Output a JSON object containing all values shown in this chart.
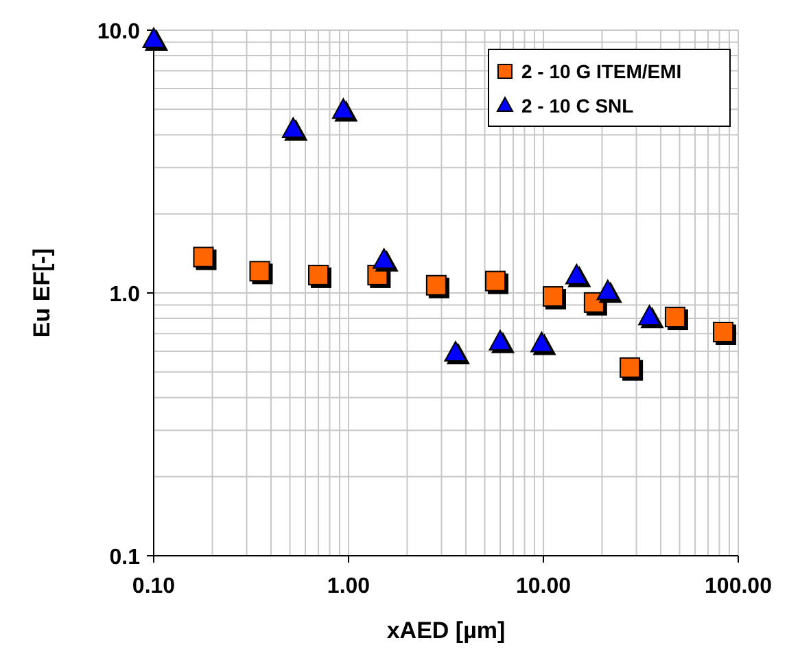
{
  "chart_data": {
    "type": "scatter",
    "xlabel": "xAED [µm]",
    "ylabel": "Eu EF[-]",
    "log": "xy",
    "grid": true,
    "legend": "top right",
    "xlim": [
      0.1,
      100
    ],
    "xticks": [
      {
        "value": 0.1,
        "label": "0.10"
      },
      {
        "value": 1,
        "label": "1.00"
      },
      {
        "value": 10,
        "label": "10.00"
      },
      {
        "value": 100,
        "label": "100.00"
      }
    ],
    "ylim": [
      0.1,
      10
    ],
    "yticks": [
      0.1,
      {
        "value": 1,
        "label": "1.0"
      },
      {
        "value": 10,
        "label": "10.0"
      }
    ],
    "series": [
      {
        "name": "2 - 10 G ITEM/EMI",
        "color": "#ff6600",
        "marker": "square",
        "x": [
          0.18,
          0.35,
          0.7,
          1.41,
          2.82,
          5.67,
          11.2,
          18.2,
          27.8,
          47.4,
          83.7
        ],
        "values": [
          1.37,
          1.21,
          1.17,
          1.17,
          1.07,
          1.11,
          0.97,
          0.92,
          0.52,
          0.81,
          0.71
        ]
      },
      {
        "name": "2 - 10 C SNL",
        "color": "#0000ff",
        "marker": "triangle",
        "x": [
          0.1,
          0.52,
          0.94,
          1.52,
          3.54,
          6.0,
          9.8,
          14.8,
          21.4,
          35
        ],
        "values": [
          9.2,
          4.19,
          4.95,
          1.33,
          0.59,
          0.65,
          0.64,
          1.16,
          1.01,
          0.81
        ]
      }
    ]
  }
}
